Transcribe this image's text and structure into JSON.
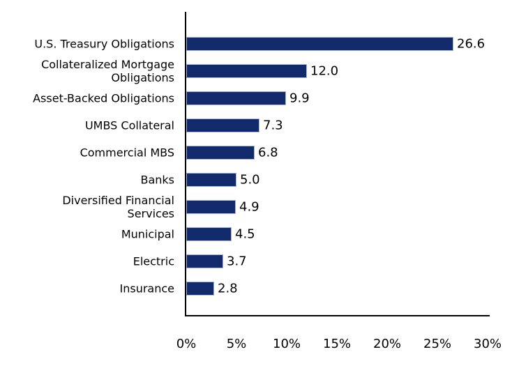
{
  "chart_data": {
    "type": "bar",
    "orientation": "horizontal",
    "title": "",
    "xlabel": "",
    "ylabel": "",
    "categories": [
      "U.S. Treasury Obligations",
      "Collateralized Mortgage\nObligations",
      "Asset-Backed Obligations",
      "UMBS Collateral",
      "Commercial MBS",
      "Banks",
      "Diversified Financial\nServices",
      "Municipal",
      "Electric",
      "Insurance"
    ],
    "values": [
      26.6,
      12.0,
      9.9,
      7.3,
      6.8,
      5.0,
      4.9,
      4.5,
      3.7,
      2.8
    ],
    "value_labels": [
      "26.6",
      "12.0",
      "9.9",
      "7.3",
      "6.8",
      "5.0",
      "4.9",
      "4.5",
      "3.7",
      "2.8"
    ],
    "x_tick_labels": [
      "0%",
      "5%",
      "10%",
      "15%",
      "20%",
      "25%",
      "30%"
    ],
    "x_tick_values": [
      0,
      5,
      10,
      15,
      20,
      25,
      30
    ],
    "xlim": [
      0,
      30
    ],
    "grid": "off",
    "legend": "none",
    "bar_color": "#12296B",
    "bar_border_color": "#A7B7DA",
    "axis_color": "#000000",
    "text_color": "#000000"
  }
}
